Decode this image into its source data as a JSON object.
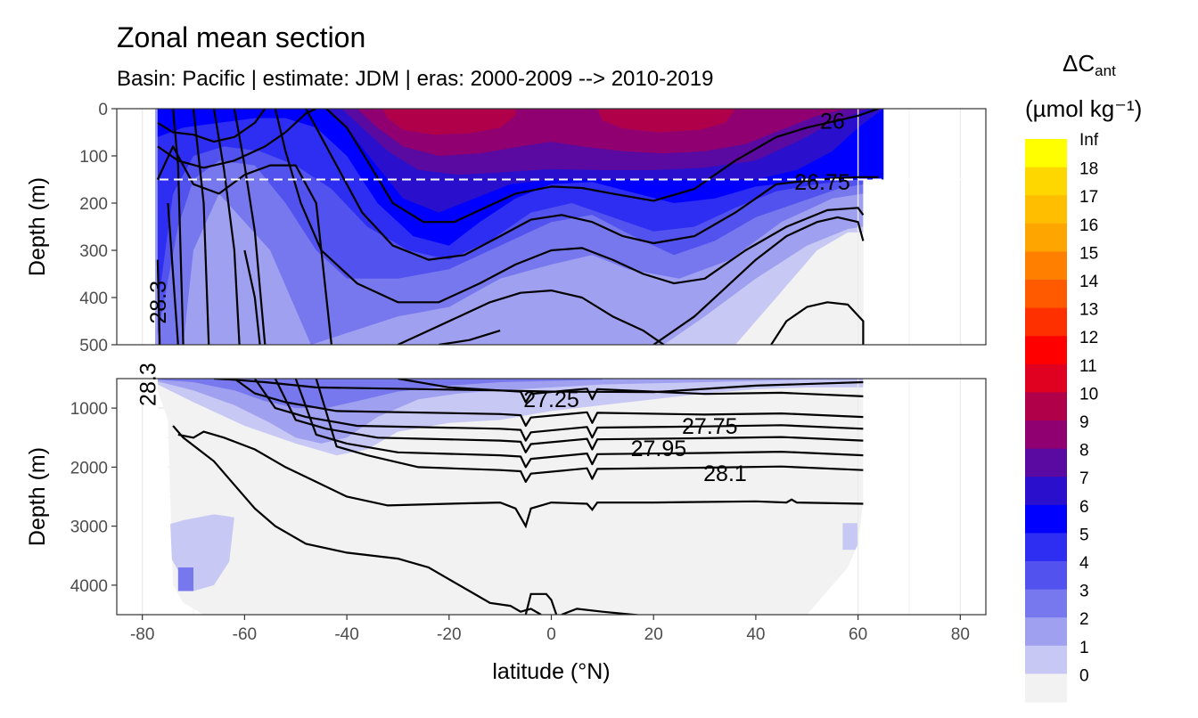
{
  "chart_data": {
    "type": "contour-section",
    "title": "Zonal mean section",
    "subtitle": "Basin: Pacific | estimate: JDM  | eras: 2000-2009 --> 2010-2019",
    "xlabel": "latitude (°N)",
    "ylabel": "Depth (m)",
    "xlim": [
      -85,
      85
    ],
    "x_ticks": [
      -80,
      -60,
      -40,
      -20,
      0,
      20,
      40,
      60,
      80
    ],
    "data_lat_range": [
      -77,
      64
    ],
    "reference_depth_line_m": 150,
    "panels": [
      {
        "name": "upper",
        "ylim": [
          0,
          500
        ],
        "y_ticks": [
          0,
          100,
          200,
          300,
          400,
          500
        ],
        "reversed": true
      },
      {
        "name": "lower",
        "ylim": [
          500,
          4500
        ],
        "y_ticks": [
          1000,
          2000,
          3000,
          4000
        ],
        "reversed": true
      }
    ],
    "legend": {
      "title_main": "ΔC",
      "title_sub": "ant",
      "title_units": "(µmol kg⁻¹)",
      "labels": [
        "Inf",
        "18",
        "17",
        "16",
        "15",
        "14",
        "13",
        "12",
        "11",
        "10",
        "9",
        "8",
        "7",
        "6",
        "5",
        "4",
        "3",
        "2",
        "1",
        "0"
      ],
      "colors": [
        "#ffff00",
        "#ffd700",
        "#ffbf00",
        "#ffa500",
        "#ff8000",
        "#ff5a00",
        "#ff3000",
        "#ff0000",
        "#e00020",
        "#b0004a",
        "#900070",
        "#5a0aa0",
        "#2a10cc",
        "#0000ff",
        "#2e2ef2",
        "#5252ee",
        "#7878ee",
        "#a0a0f0",
        "#c8c8f4",
        "#f2f2f2"
      ]
    },
    "contours": [
      {
        "level": "26",
        "label_at": [
          55,
          25
        ]
      },
      {
        "level": "26.75",
        "label_at": [
          53,
          155
        ]
      },
      {
        "level": "27.25",
        "label_at": [
          0,
          850
        ]
      },
      {
        "level": "27.75",
        "label_at": [
          31,
          1300
        ]
      },
      {
        "level": "27.95",
        "label_at": [
          21,
          1680
        ]
      },
      {
        "level": "28.1",
        "label_at": [
          34,
          2100
        ]
      },
      {
        "level": "28.3",
        "label_at": [
          -77,
          410
        ]
      },
      {
        "level": "28.3",
        "label_at": [
          -79,
          600
        ]
      }
    ],
    "contour_depth_profiles_m": {
      "lat": [
        -77,
        -70,
        -60,
        -50,
        -40,
        -30,
        -20,
        -10,
        0,
        10,
        20,
        30,
        40,
        50,
        60
      ],
      "sigma_upper": [
        [
          null,
          20,
          10,
          0,
          0,
          60,
          130,
          170,
          165,
          175,
          190,
          170,
          110,
          60,
          20
        ],
        [
          null,
          60,
          40,
          20,
          30,
          170,
          240,
          200,
          170,
          200,
          270,
          260,
          200,
          140,
          90
        ],
        [
          null,
          120,
          80,
          60,
          80,
          270,
          320,
          260,
          230,
          260,
          320,
          330,
          280,
          210,
          160
        ],
        [
          null,
          200,
          150,
          120,
          170,
          340,
          390,
          330,
          300,
          330,
          400,
          420,
          360,
          290,
          240
        ],
        [
          null,
          300,
          250,
          240,
          290,
          430,
          470,
          410,
          380,
          410,
          480,
          500,
          470,
          410,
          380
        ]
      ]
    }
  }
}
